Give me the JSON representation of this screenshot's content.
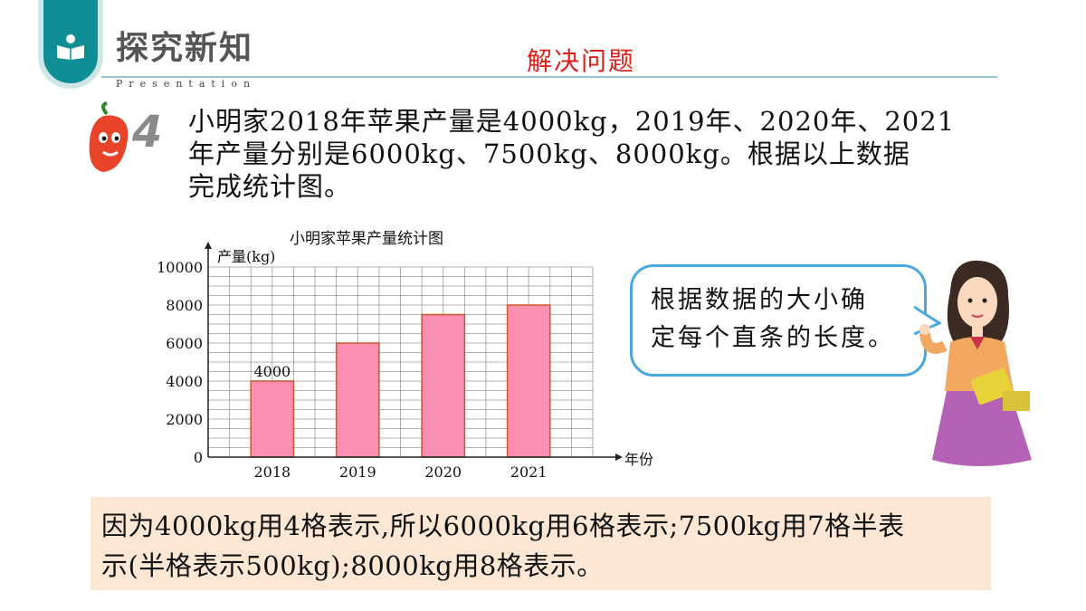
{
  "header": {
    "title": "探究新知",
    "subtitle": "Presentation",
    "section": "解决问题"
  },
  "problem": {
    "number": "4",
    "line1": "小明家2018年苹果产量是4000kg，2019年、2020年、2021",
    "line2": "年产量分别是6000kg、7500kg、8000kg。根据以上数据",
    "line3": "完成统计图。"
  },
  "bubble": {
    "line1": "根据数据的大小确",
    "line2": "定每个直条的长度。"
  },
  "explanation": {
    "line1": "因为4000kg用4格表示,所以6000kg用6格表示;7500kg用7格半表",
    "line2": "示(半格表示500kg);8000kg用8格表示。"
  },
  "colors": {
    "teal": "#0f8f95",
    "red": "#e0201a",
    "bar_fill": "#fb8fb1",
    "bar_stroke": "#c9582c",
    "explain_bg": "#fbe7d3",
    "bubble_border": "#4aa7e0"
  },
  "chart_data": {
    "type": "bar",
    "title": "小明家苹果产量统计图",
    "ylabel": "产量(kg)",
    "xlabel": "年份",
    "categories": [
      "2018",
      "2019",
      "2020",
      "2021"
    ],
    "values": [
      4000,
      6000,
      7500,
      8000
    ],
    "ylim": [
      0,
      10000
    ],
    "yticks": [
      "0",
      "2000",
      "4000",
      "6000",
      "8000",
      "10000"
    ],
    "data_labels": [
      "4000",
      "",
      "",
      ""
    ],
    "grid": true
  }
}
